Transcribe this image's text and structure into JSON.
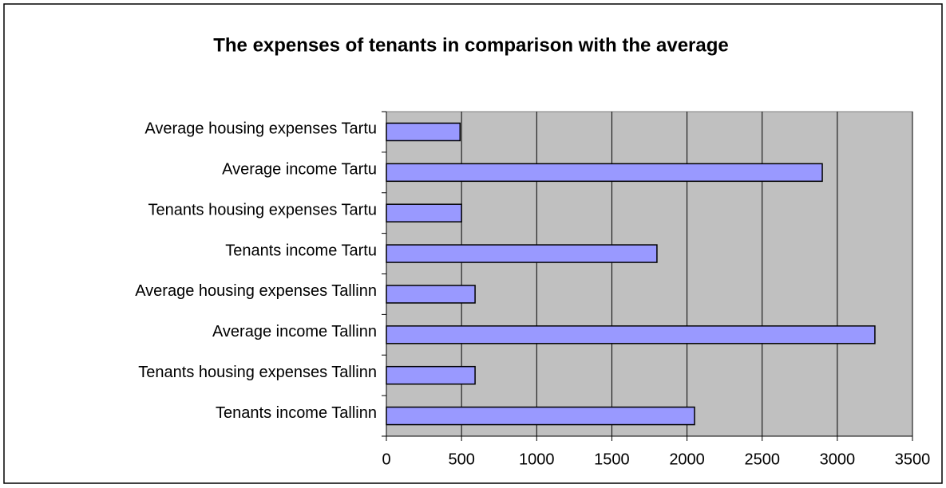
{
  "chart_data": {
    "type": "barh",
    "title": "The expenses of tenants in comparison with the average",
    "categories": [
      "Average housing expenses Tartu",
      "Average income Tartu",
      "Tenants housing expenses Tartu",
      "Tenants income Tartu",
      "Average housing expenses Tallinn",
      "Average income Tallinn",
      "Tenants housing expenses Tallinn",
      "Tenants income Tallinn"
    ],
    "values": [
      490,
      2900,
      500,
      1800,
      590,
      3250,
      590,
      2050
    ],
    "color": "#9999ff",
    "xlim": [
      0,
      3500
    ],
    "xticks": [
      0,
      500,
      1000,
      1500,
      2000,
      2500,
      3000,
      3500
    ],
    "grid": true
  }
}
